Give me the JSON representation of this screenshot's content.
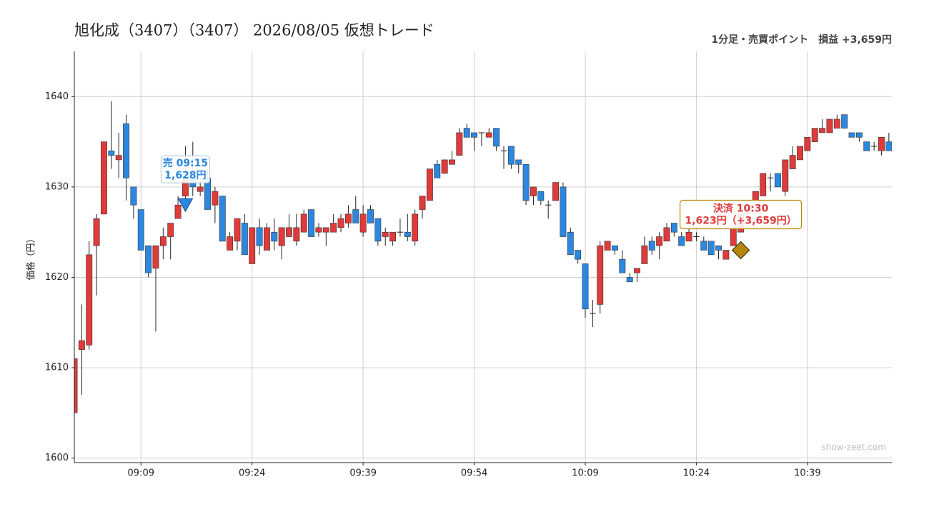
{
  "chart_data": {
    "type": "candlestick",
    "title": "旭化成（3407）（3407） 2026/08/05 仮想トレード",
    "subtitle": "1分足・売買ポイント　損益 +3,659円",
    "ylabel": "価格（円）",
    "watermark": "show-zeet.com",
    "x": [
      "09:00",
      "09:01",
      "09:02",
      "09:03",
      "09:04",
      "09:05",
      "09:06",
      "09:07",
      "09:08",
      "09:09",
      "09:10",
      "09:11",
      "09:12",
      "09:13",
      "09:14",
      "09:15",
      "09:16",
      "09:17",
      "09:18",
      "09:19",
      "09:20",
      "09:21",
      "09:22",
      "09:23",
      "09:24",
      "09:25",
      "09:26",
      "09:27",
      "09:28",
      "09:29",
      "09:30",
      "09:31",
      "09:32",
      "09:33",
      "09:34",
      "09:35",
      "09:36",
      "09:37",
      "09:38",
      "09:39",
      "09:40",
      "09:41",
      "09:42",
      "09:43",
      "09:44",
      "09:45",
      "09:46",
      "09:47",
      "09:48",
      "09:49",
      "09:50",
      "09:51",
      "09:52",
      "09:53",
      "09:54",
      "09:55",
      "09:56",
      "09:57",
      "09:58",
      "09:59",
      "10:00",
      "10:01",
      "10:02",
      "10:03",
      "10:04",
      "10:05",
      "10:06",
      "10:07",
      "10:08",
      "10:09",
      "10:10",
      "10:11",
      "10:12",
      "10:13",
      "10:14",
      "10:15",
      "10:16",
      "10:17",
      "10:18",
      "10:19",
      "10:20",
      "10:21",
      "10:22",
      "10:23",
      "10:24",
      "10:25",
      "10:26",
      "10:27",
      "10:28",
      "10:29",
      "10:30",
      "10:31",
      "10:32",
      "10:33",
      "10:34",
      "10:35",
      "10:36",
      "10:37",
      "10:38",
      "10:39",
      "10:40",
      "10:41",
      "10:42",
      "10:43",
      "10:44",
      "10:45",
      "10:46",
      "10:47",
      "10:48",
      "10:49",
      "10:50"
    ],
    "open": [
      1605,
      1612,
      1612.5,
      1623.5,
      1627,
      1634,
      1633,
      1637,
      1630,
      1627.5,
      1623.5,
      1621,
      1623.5,
      1624.5,
      1626.5,
      1629,
      1631,
      1629.5,
      1631,
      1628,
      1629,
      1623,
      1624,
      1626,
      1621.5,
      1625.5,
      1623,
      1625,
      1623.5,
      1624.5,
      1624,
      1625,
      1627.5,
      1625,
      1625,
      1625,
      1625.5,
      1626,
      1627.5,
      1625,
      1627.5,
      1626.5,
      1624.5,
      1624,
      1625,
      1625,
      1624,
      1627.5,
      1628.5,
      1632.5,
      1631.5,
      1632.5,
      1633.5,
      1636.5,
      1636,
      1636,
      1635.5,
      1636.5,
      1634,
      1634.5,
      1633,
      1632.5,
      1629,
      1629.5,
      1628,
      1628.5,
      1630,
      1625,
      1623,
      1621.5,
      1616,
      1617,
      1623,
      1623.5,
      1622,
      1620,
      1620.5,
      1621.5,
      1624,
      1623.5,
      1624,
      1626,
      1624.5,
      1624,
      1624.5,
      1624,
      1624,
      1623.5,
      1622,
      1623.5,
      1625,
      1627,
      1628.5,
      1629,
      1631,
      1631.5,
      1629.5,
      1632,
      1633,
      1634,
      1635,
      1636,
      1636,
      1636.5,
      1638,
      1636,
      1636,
      1635,
      1634.5,
      1634,
      1635
    ],
    "high": [
      1611,
      1617,
      1624,
      1627,
      1635,
      1639.5,
      1636,
      1638,
      1630,
      1627.5,
      1623.5,
      1623.5,
      1625.5,
      1626,
      1629,
      1634.5,
      1635,
      1631,
      1632,
      1630,
      1629,
      1625,
      1626.5,
      1627,
      1625.5,
      1626.5,
      1626,
      1626.5,
      1625.5,
      1627,
      1627,
      1627.5,
      1627.5,
      1626,
      1625.5,
      1627,
      1627,
      1628,
      1629,
      1628,
      1628,
      1626.5,
      1625.5,
      1625,
      1626.5,
      1627,
      1627.5,
      1629,
      1632,
      1633,
      1633,
      1634,
      1636.5,
      1637,
      1636,
      1636,
      1636.5,
      1636.5,
      1634.5,
      1634.5,
      1633,
      1632.5,
      1630,
      1629.5,
      1628.5,
      1630.5,
      1630.5,
      1625.5,
      1623,
      1621.5,
      1617.5,
      1624,
      1624,
      1623.5,
      1623,
      1620.5,
      1621,
      1624.5,
      1624.5,
      1625,
      1626,
      1626,
      1625,
      1625.5,
      1625,
      1624.5,
      1624,
      1623.5,
      1623,
      1625.5,
      1627,
      1628,
      1629.5,
      1631.5,
      1631.5,
      1631.5,
      1633,
      1634.5,
      1634.5,
      1635.5,
      1636.5,
      1637.5,
      1637.5,
      1638,
      1638,
      1636,
      1636,
      1635,
      1635,
      1635.5,
      1636
    ],
    "low": [
      1605,
      1607,
      1612,
      1618,
      1627,
      1632,
      1631,
      1628.5,
      1626.5,
      1623,
      1620,
      1614,
      1622,
      1622,
      1626.5,
      1628,
      1629,
      1629,
      1627.5,
      1626,
      1624,
      1623,
      1623,
      1622.5,
      1621.5,
      1622.5,
      1623,
      1623,
      1622,
      1624.5,
      1623.5,
      1625,
      1624.5,
      1624.5,
      1623.5,
      1625,
      1625,
      1625.5,
      1626,
      1624.5,
      1626,
      1623.5,
      1623.5,
      1623.5,
      1624.5,
      1624,
      1623.5,
      1626.5,
      1628.5,
      1631,
      1631.5,
      1632.5,
      1633.5,
      1635.5,
      1634,
      1634.5,
      1635.5,
      1634,
      1632,
      1632,
      1631.5,
      1628,
      1628,
      1628,
      1626.5,
      1628.5,
      1624.5,
      1622.5,
      1621.5,
      1615.5,
      1614.5,
      1616,
      1623,
      1622.5,
      1620.5,
      1619.5,
      1619.5,
      1621.5,
      1622.5,
      1622,
      1624,
      1624.5,
      1623.5,
      1624,
      1624,
      1623,
      1622.5,
      1622,
      1622,
      1623.5,
      1625,
      1627,
      1628.5,
      1629,
      1629.5,
      1630,
      1629,
      1632,
      1633,
      1634,
      1635,
      1636,
      1636,
      1636.5,
      1636.5,
      1635.5,
      1635,
      1634,
      1634,
      1633.5,
      1634
    ],
    "close": [
      1611,
      1613,
      1622.5,
      1626.5,
      1635,
      1633.5,
      1633.5,
      1631,
      1628,
      1623,
      1620.5,
      1623.5,
      1624.5,
      1626,
      1628,
      1631,
      1630,
      1630,
      1627.5,
      1629.5,
      1624,
      1624.5,
      1626.5,
      1622.5,
      1625.5,
      1623.5,
      1625.5,
      1624,
      1625.5,
      1625.5,
      1625.5,
      1627,
      1624.5,
      1625.5,
      1625.5,
      1626,
      1626.5,
      1627,
      1626,
      1627,
      1626,
      1624,
      1625,
      1625,
      1625,
      1624.5,
      1627,
      1629,
      1632,
      1631,
      1633,
      1633,
      1636,
      1635.5,
      1635.5,
      1636,
      1636,
      1634.5,
      1634,
      1632.5,
      1632.5,
      1628.5,
      1630,
      1628.5,
      1628,
      1630.5,
      1624.5,
      1622.5,
      1622,
      1616.5,
      1616,
      1623.5,
      1624,
      1623,
      1620.5,
      1619.5,
      1621,
      1623.5,
      1623,
      1624.5,
      1625.5,
      1625,
      1623.5,
      1625,
      1624.5,
      1623,
      1622.5,
      1623,
      1623,
      1625.5,
      1627,
      1628,
      1629.5,
      1631.5,
      1631,
      1630,
      1633,
      1633.5,
      1634.5,
      1635.5,
      1636.5,
      1636.5,
      1637.5,
      1637.5,
      1636.5,
      1635.5,
      1635.5,
      1634,
      1634.5,
      1635.5,
      1634
    ],
    "up_color": "#e03a3a",
    "down_color": "#2b87e0",
    "ylim": [
      1599.5,
      1645
    ],
    "yticks": [
      1600,
      1610,
      1620,
      1630,
      1640
    ],
    "xticks": [
      "09:09",
      "09:24",
      "09:39",
      "09:54",
      "10:09",
      "10:24",
      "10:39"
    ],
    "grid": true,
    "annotations": [
      {
        "side": "売 09:15",
        "label": "1,628円",
        "x": "09:15",
        "price": 1628,
        "color": "#2b87e0",
        "marker": "triangle-down"
      },
      {
        "side": "決済 10:30",
        "label": "1,623円（+3,659円）",
        "x": "10:30",
        "price": 1623,
        "color": "#b8860b",
        "text_color": "#e03a3a",
        "marker": "diamond"
      }
    ]
  }
}
